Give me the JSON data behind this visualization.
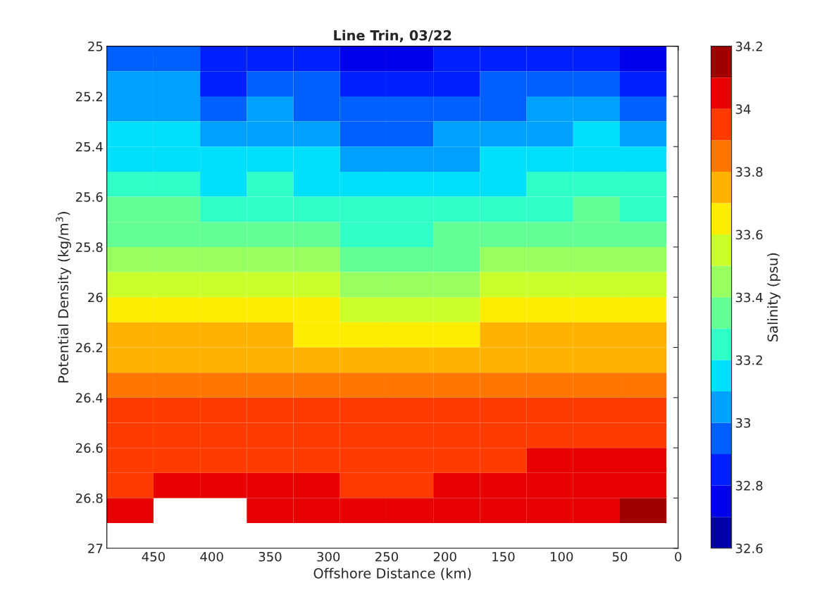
{
  "chart_data": {
    "type": "heatmap",
    "title": "Line Trin, 03/22",
    "xlabel": "Offshore Distance (km)",
    "ylabel": "Potential Density (kg/m$^{3}$)",
    "clabel": "Salinity (psu)",
    "x": [
      470,
      430,
      390,
      350,
      310,
      270,
      230,
      190,
      150,
      110,
      70,
      30
    ],
    "y": [
      25.05,
      25.15,
      25.25,
      25.35,
      25.45,
      25.55,
      25.65,
      25.75,
      25.85,
      25.95,
      26.05,
      26.15,
      26.25,
      26.35,
      26.45,
      26.55,
      26.65,
      26.75,
      26.85
    ],
    "xlim": [
      490,
      0
    ],
    "xticks": [
      450,
      400,
      350,
      300,
      250,
      200,
      150,
      100,
      50,
      0
    ],
    "ylim": [
      27,
      25
    ],
    "yticks": [
      25,
      25.2,
      25.4,
      25.6,
      25.8,
      26,
      26.2,
      26.4,
      26.6,
      26.8,
      27
    ],
    "clim": [
      32.6,
      34.2
    ],
    "cticks": [
      32.6,
      {
        "value": 32.7,
        "label": null
      },
      32.8,
      {
        "value": 32.9,
        "label": null
      },
      33,
      {
        "value": 33.1,
        "label": null
      },
      33.2,
      {
        "value": 33.3,
        "label": null
      },
      33.4,
      {
        "value": 33.5,
        "label": null
      },
      33.6,
      {
        "value": 33.7,
        "label": null
      },
      33.8,
      {
        "value": 33.9,
        "label": null
      },
      34,
      {
        "value": 34.1,
        "label": null
      },
      34.2
    ],
    "cells": [
      [
        32.95,
        32.95,
        32.85,
        32.85,
        32.85,
        32.75,
        32.75,
        32.85,
        32.85,
        32.85,
        32.85,
        32.75
      ],
      [
        33.05,
        33.05,
        32.85,
        32.95,
        32.95,
        32.85,
        32.85,
        32.85,
        32.95,
        32.95,
        32.95,
        32.85
      ],
      [
        33.05,
        33.05,
        32.95,
        33.05,
        32.95,
        32.95,
        32.95,
        32.95,
        32.95,
        33.05,
        33.05,
        32.95
      ],
      [
        33.15,
        33.15,
        33.05,
        33.05,
        33.05,
        32.95,
        32.95,
        33.05,
        33.05,
        33.05,
        33.15,
        33.05
      ],
      [
        33.15,
        33.15,
        33.15,
        33.15,
        33.15,
        33.05,
        33.05,
        33.05,
        33.15,
        33.15,
        33.15,
        33.15
      ],
      [
        33.25,
        33.25,
        33.15,
        33.25,
        33.15,
        33.15,
        33.15,
        33.15,
        33.15,
        33.25,
        33.25,
        33.25
      ],
      [
        33.35,
        33.35,
        33.25,
        33.25,
        33.25,
        33.25,
        33.25,
        33.25,
        33.25,
        33.25,
        33.35,
        33.25
      ],
      [
        33.35,
        33.35,
        33.35,
        33.35,
        33.35,
        33.25,
        33.25,
        33.35,
        33.35,
        33.35,
        33.35,
        33.35
      ],
      [
        33.45,
        33.45,
        33.45,
        33.45,
        33.45,
        33.35,
        33.35,
        33.35,
        33.45,
        33.45,
        33.45,
        33.45
      ],
      [
        33.55,
        33.55,
        33.55,
        33.55,
        33.55,
        33.45,
        33.45,
        33.45,
        33.55,
        33.55,
        33.55,
        33.55
      ],
      [
        33.65,
        33.65,
        33.65,
        33.65,
        33.65,
        33.55,
        33.55,
        33.55,
        33.65,
        33.65,
        33.65,
        33.65
      ],
      [
        33.75,
        33.75,
        33.75,
        33.75,
        33.65,
        33.65,
        33.65,
        33.65,
        33.75,
        33.75,
        33.75,
        33.75
      ],
      [
        33.75,
        33.75,
        33.75,
        33.75,
        33.75,
        33.75,
        33.75,
        33.75,
        33.75,
        33.75,
        33.75,
        33.75
      ],
      [
        33.85,
        33.85,
        33.85,
        33.85,
        33.85,
        33.85,
        33.85,
        33.85,
        33.85,
        33.85,
        33.85,
        33.85
      ],
      [
        33.95,
        33.95,
        33.95,
        33.95,
        33.95,
        33.95,
        33.95,
        33.95,
        33.95,
        33.95,
        33.95,
        33.95
      ],
      [
        33.95,
        33.95,
        33.95,
        33.95,
        33.95,
        33.95,
        33.95,
        33.95,
        33.95,
        33.95,
        33.95,
        33.95
      ],
      [
        33.95,
        33.95,
        33.95,
        33.95,
        33.95,
        33.95,
        33.95,
        33.95,
        33.95,
        34.05,
        34.05,
        34.05
      ],
      [
        33.95,
        34.05,
        34.05,
        34.05,
        34.05,
        33.95,
        33.95,
        34.05,
        34.05,
        34.05,
        34.05,
        34.05
      ],
      [
        34.05,
        null,
        null,
        34.05,
        34.05,
        34.05,
        34.05,
        34.05,
        34.05,
        34.05,
        34.05,
        34.15
      ]
    ]
  }
}
